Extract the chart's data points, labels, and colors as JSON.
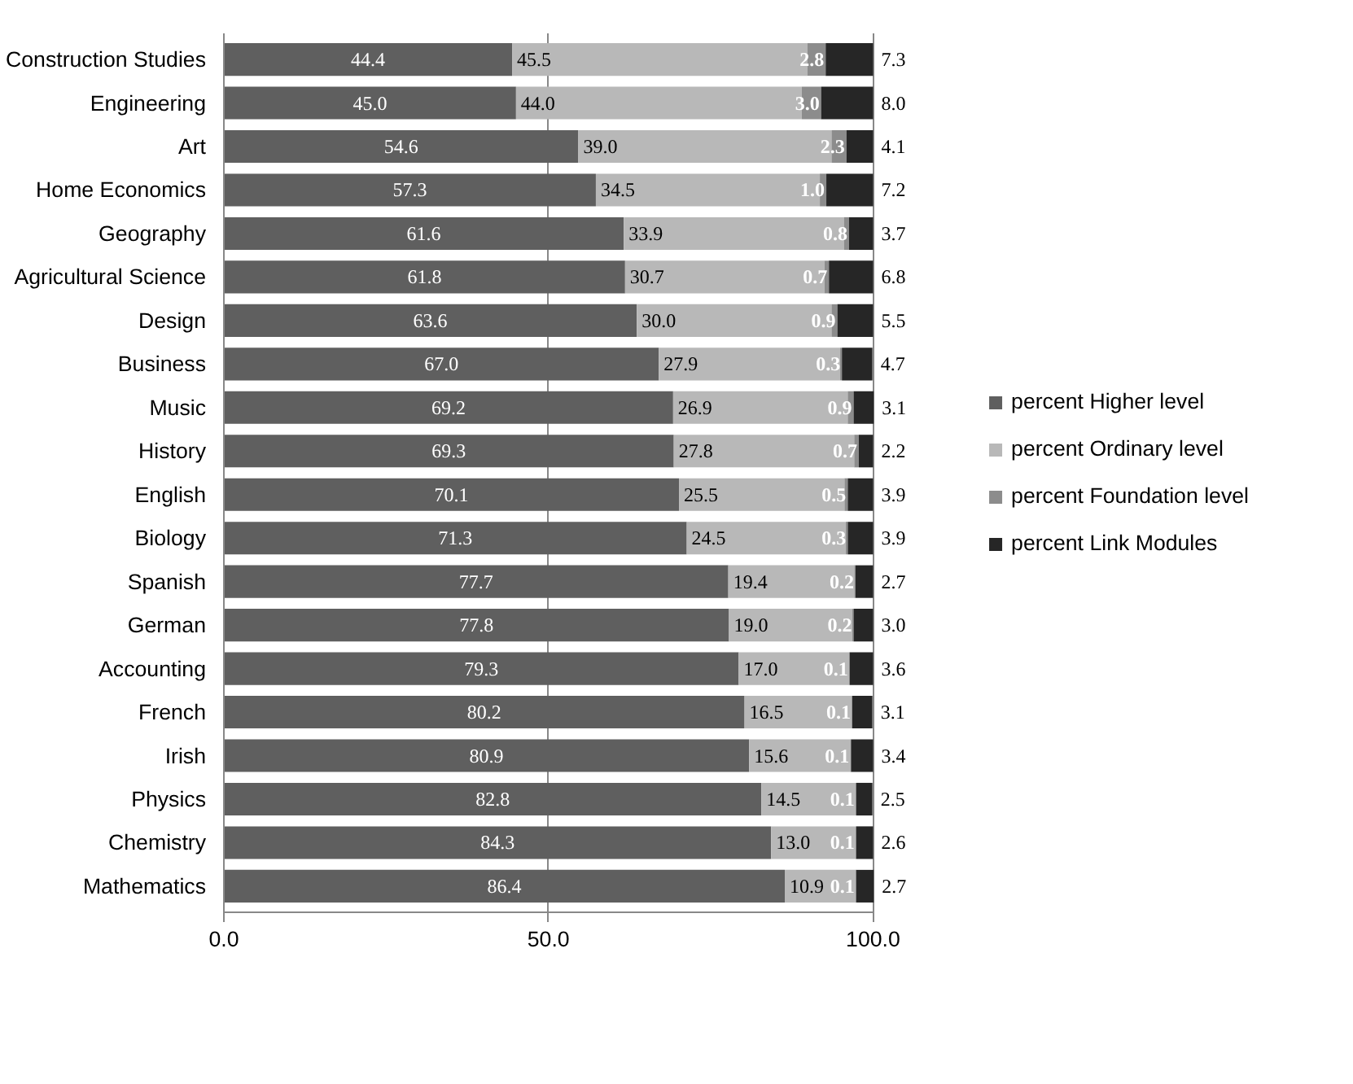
{
  "chart_data": {
    "type": "bar",
    "orientation": "horizontal",
    "stacked": true,
    "categories": [
      "Construction Studies",
      "Engineering",
      "Art",
      "Home Economics",
      "Geography",
      "Agricultural Science",
      "Design",
      "Business",
      "Music",
      "History",
      "English",
      "Biology",
      "Spanish",
      "German",
      "Accounting",
      "French",
      "Irish",
      "Physics",
      "Chemistry",
      "Mathematics"
    ],
    "series": [
      {
        "name": "percent Higher level",
        "color": "#5f5f5f",
        "values": [
          44.4,
          45.0,
          54.6,
          57.3,
          61.6,
          61.8,
          63.6,
          67.0,
          69.2,
          69.3,
          70.1,
          71.3,
          77.7,
          77.8,
          79.3,
          80.2,
          80.9,
          82.8,
          84.3,
          86.4
        ],
        "value_labels": [
          "44.4",
          "45.0",
          "54.6",
          "57.3",
          "61.6",
          "61.8",
          "63.6",
          "67.0",
          "69.2",
          "69.3",
          "70.1",
          "71.3",
          "77.7",
          "77.8",
          "79.3",
          "80.2",
          "80.9",
          "82.8",
          "84.3",
          "86.4"
        ]
      },
      {
        "name": "percent Ordinary level",
        "color": "#b8b8b8",
        "values": [
          45.5,
          44.0,
          39.0,
          34.5,
          33.9,
          30.7,
          30.0,
          27.9,
          26.9,
          27.8,
          25.5,
          24.5,
          19.4,
          19.0,
          17.0,
          16.5,
          15.6,
          14.5,
          13.0,
          10.9
        ],
        "value_labels": [
          "45.5",
          "44.0",
          "39.0",
          "34.5",
          "33.9",
          "30.7",
          "30.0",
          "27.9",
          "26.9",
          "27.8",
          "25.5",
          "24.5",
          "19.4",
          "19.0",
          "17.0",
          "16.5",
          "15.6",
          "14.5",
          "13.0",
          "10.9"
        ]
      },
      {
        "name": "percent Foundation level",
        "color": "#8c8c8c",
        "values": [
          2.8,
          3.0,
          2.3,
          1.0,
          0.8,
          0.7,
          0.9,
          0.3,
          0.9,
          0.7,
          0.5,
          0.3,
          0.2,
          0.2,
          0.1,
          0.1,
          0.1,
          0.1,
          0.1,
          0.1
        ],
        "value_labels": [
          "2.8",
          "3.0",
          "2.3",
          "1.0",
          "0.8",
          "0.7",
          "0.9",
          "0.3",
          "0.9",
          "0.7",
          "0.5",
          "0.3",
          "0.2",
          "0.2",
          "0.1",
          "0.1",
          "0.1",
          "0.1",
          "0.1",
          "0.1"
        ]
      },
      {
        "name": "percent Link Modules",
        "color": "#262626",
        "values": [
          7.3,
          8.0,
          4.1,
          7.2,
          3.7,
          6.8,
          5.5,
          4.7,
          3.1,
          2.2,
          3.9,
          3.9,
          2.7,
          3.0,
          3.6,
          3.1,
          3.4,
          2.5,
          2.6,
          2.7
        ],
        "value_labels": [
          "7.3",
          "8.0",
          "4.1",
          "7.2",
          "3.7",
          "6.8",
          "5.5",
          "4.7",
          "3.1",
          "2.2",
          "3.9",
          "3.9",
          "2.7",
          "3.0",
          "3.6",
          "3.1",
          "3.4",
          "2.5",
          "2.6",
          "2.7"
        ]
      }
    ],
    "xlim": [
      0,
      100
    ],
    "xticks": [
      {
        "value": 0,
        "label": "0.0"
      },
      {
        "value": 50,
        "label": "50.0"
      },
      {
        "value": 100,
        "label": "100.0"
      }
    ],
    "grid": "x",
    "legend": "right"
  }
}
